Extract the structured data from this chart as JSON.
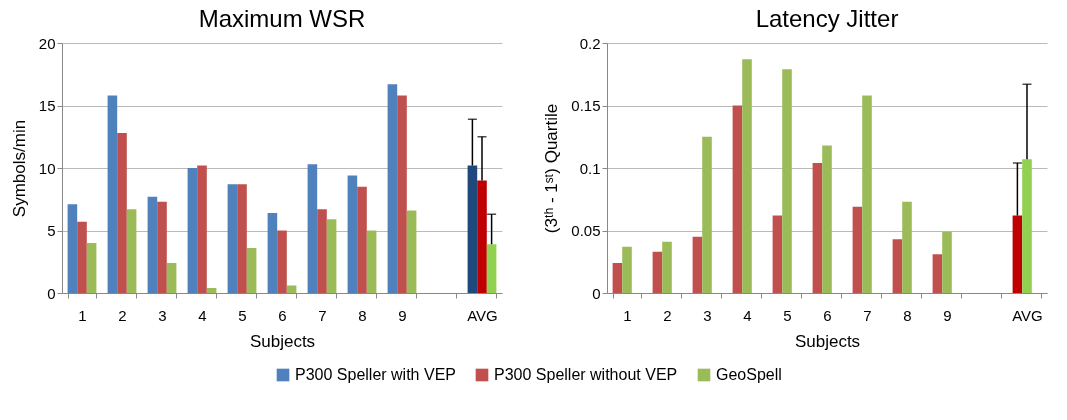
{
  "chart_data": [
    {
      "type": "bar",
      "title": "Maximum WSR",
      "xlabel": "Subjects",
      "ylabel": "Symbols/min",
      "categories": [
        "1",
        "2",
        "3",
        "4",
        "5",
        "6",
        "7",
        "8",
        "9",
        null,
        "AVG"
      ],
      "ylim": [
        0,
        20
      ],
      "yticks": [
        0,
        5,
        10,
        15,
        20
      ],
      "grid": "y",
      "legend": "bottom",
      "series": [
        {
          "name": "P300 Speller with VEP",
          "color": "#4f81bd",
          "colors": [
            "#4f81bd",
            "#4f81bd",
            "#4f81bd",
            "#4f81bd",
            "#4f81bd",
            "#4f81bd",
            "#4f81bd",
            "#4f81bd",
            "#4f81bd",
            null,
            "#1f497d"
          ],
          "values": [
            7.1,
            15.8,
            7.7,
            10.0,
            8.7,
            6.4,
            10.3,
            9.4,
            16.7,
            null,
            10.2
          ],
          "errors": [
            null,
            null,
            null,
            null,
            null,
            null,
            null,
            null,
            null,
            null,
            [
              10.2,
              13.9
            ]
          ]
        },
        {
          "name": "P300 Speller without VEP",
          "color": "#c0504d",
          "colors": [
            "#c0504d",
            "#c0504d",
            "#c0504d",
            "#c0504d",
            "#c0504d",
            "#c0504d",
            "#c0504d",
            "#c0504d",
            "#c0504d",
            null,
            "#c00000"
          ],
          "values": [
            5.7,
            12.8,
            7.3,
            10.2,
            8.7,
            5.0,
            6.7,
            8.5,
            15.8,
            null,
            9.0
          ],
          "errors": [
            null,
            null,
            null,
            null,
            null,
            null,
            null,
            null,
            null,
            null,
            [
              9.0,
              12.5
            ]
          ]
        },
        {
          "name": "GeoSpell",
          "color": "#9bbb59",
          "colors": [
            "#9bbb59",
            "#9bbb59",
            "#9bbb59",
            "#9bbb59",
            "#9bbb59",
            "#9bbb59",
            "#9bbb59",
            "#9bbb59",
            "#9bbb59",
            null,
            "#92d050"
          ],
          "values": [
            4.0,
            6.7,
            2.4,
            0.4,
            3.6,
            0.6,
            5.9,
            5.0,
            6.6,
            null,
            3.9
          ],
          "errors": [
            null,
            null,
            null,
            null,
            null,
            null,
            null,
            null,
            null,
            null,
            [
              3.9,
              6.3
            ]
          ]
        }
      ]
    },
    {
      "type": "bar",
      "title": "Latency Jitter",
      "xlabel": "Subjects",
      "ylabel": "(3ᵗʰ - 1ˢᵗ) Quartile",
      "categories": [
        "1",
        "2",
        "3",
        "4",
        "5",
        "6",
        "7",
        "8",
        "9",
        null,
        "AVG"
      ],
      "ylim": [
        0,
        0.2
      ],
      "yticks": [
        0,
        0.05,
        0.1,
        0.15,
        0.2
      ],
      "grid": "y",
      "legend": "bottom",
      "series": [
        {
          "name": "P300 Speller without VEP",
          "color": "#c0504d",
          "colors": [
            "#c0504d",
            "#c0504d",
            "#c0504d",
            "#c0504d",
            "#c0504d",
            "#c0504d",
            "#c0504d",
            "#c0504d",
            "#c0504d",
            null,
            "#c00000"
          ],
          "values": [
            0.024,
            0.033,
            0.045,
            0.15,
            0.062,
            0.104,
            0.069,
            0.043,
            0.031,
            null,
            0.062
          ],
          "errors": [
            null,
            null,
            null,
            null,
            null,
            null,
            null,
            null,
            null,
            null,
            [
              0.062,
              0.104
            ]
          ]
        },
        {
          "name": "GeoSpell",
          "color": "#9bbb59",
          "colors": [
            "#9bbb59",
            "#9bbb59",
            "#9bbb59",
            "#9bbb59",
            "#9bbb59",
            "#9bbb59",
            "#9bbb59",
            "#9bbb59",
            "#9bbb59",
            null,
            "#92d050"
          ],
          "values": [
            0.037,
            0.041,
            0.125,
            0.187,
            0.179,
            0.118,
            0.158,
            0.073,
            0.049,
            null,
            0.107
          ],
          "errors": [
            null,
            null,
            null,
            null,
            null,
            null,
            null,
            null,
            null,
            null,
            [
              0.107,
              0.167
            ]
          ]
        }
      ]
    }
  ]
}
